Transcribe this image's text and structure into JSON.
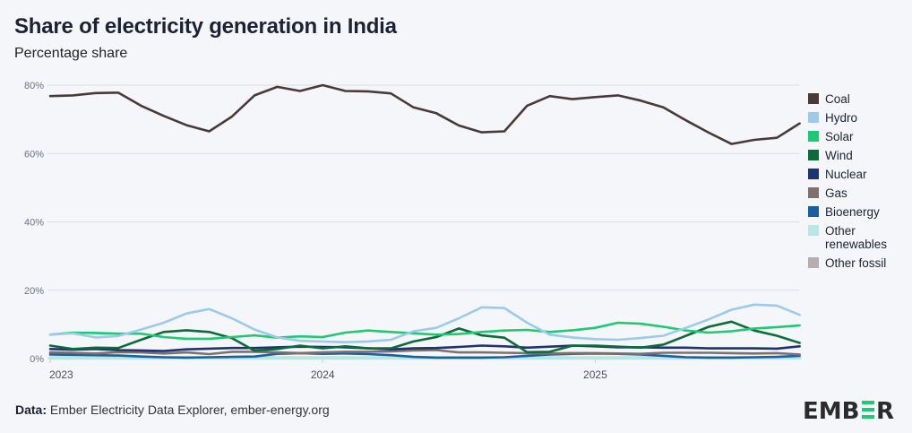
{
  "header": {
    "title": "Share of electricity generation in India",
    "subtitle": "Percentage share"
  },
  "footer": {
    "source_label": "Data:",
    "source_text": "Ember Electricity Data Explorer, ember-energy.org",
    "logo_text": "EMBER"
  },
  "chart_data": {
    "type": "line",
    "title": "Share of electricity generation in India",
    "subtitle": "Percentage share",
    "xlabel": "",
    "ylabel": "",
    "ylim": [
      0,
      80
    ],
    "yticks": [
      0,
      20,
      40,
      60,
      80
    ],
    "ytick_labels": [
      "0%",
      "20%",
      "40%",
      "60%",
      "80%"
    ],
    "x_start": "2023-01",
    "x_interval": "monthly",
    "xticks": [
      {
        "index": 0,
        "label": "2023"
      },
      {
        "index": 12,
        "label": "2024"
      },
      {
        "index": 24,
        "label": "2025"
      }
    ],
    "grid": true,
    "legend_position": "right",
    "series": [
      {
        "name": "Coal",
        "color": "#4a3a37",
        "values": [
          76.8,
          77,
          77.7,
          77.8,
          74,
          71,
          68.3,
          66.5,
          70.8,
          77,
          79.5,
          78.3,
          80,
          78.3,
          78.2,
          77.6,
          73.5,
          71.8,
          68.2,
          66.2,
          66.5,
          74,
          76.8,
          75.9,
          76.5,
          77,
          75.5,
          73.5,
          69.7,
          66.1,
          62.8,
          64,
          64.6,
          68.8
        ]
      },
      {
        "name": "Hydro",
        "color": "#9bcbea",
        "values": [
          7,
          7.4,
          6.2,
          6.6,
          8.5,
          10.5,
          13.2,
          14.5,
          11.8,
          8.5,
          6.2,
          5.2,
          5,
          4.8,
          5,
          5.5,
          8,
          9,
          11.8,
          15,
          14.8,
          10.5,
          7,
          6.2,
          5.7,
          5.5,
          6,
          6.7,
          9,
          11.5,
          14.3,
          15.8,
          15.5,
          12.8
        ]
      },
      {
        "name": "Solar",
        "color": "#1fc972",
        "values": [
          7,
          7.6,
          7.5,
          7.3,
          7.3,
          6.3,
          5.8,
          5.8,
          6.3,
          6.8,
          6.1,
          6.5,
          6.3,
          7.6,
          8.2,
          7.8,
          7.4,
          7,
          7.2,
          7.8,
          8.2,
          8.4,
          7.8,
          8.3,
          9,
          10.5,
          10.2,
          9.3,
          8.2,
          7.6,
          8,
          8.8,
          9.2,
          9.7
        ]
      },
      {
        "name": "Wind",
        "color": "#0b6b3a",
        "values": [
          3.8,
          2.8,
          3.2,
          3.1,
          5.5,
          7.8,
          8.3,
          7.8,
          6,
          2.3,
          2.8,
          3.8,
          3,
          3.6,
          3,
          3,
          5,
          6.3,
          8.8,
          6.8,
          6.1,
          1.9,
          2,
          3.8,
          3.8,
          3.5,
          3.2,
          4.1,
          6.7,
          9.3,
          10.8,
          8.2,
          6.7,
          4.6
        ]
      },
      {
        "name": "Nuclear",
        "color": "#1e3371",
        "values": [
          2.8,
          2.6,
          2.8,
          2.5,
          2.4,
          2.2,
          2.7,
          2.9,
          3.1,
          3.1,
          3.3,
          3.5,
          3.4,
          3.3,
          3,
          2.7,
          3,
          3.1,
          3.4,
          3.8,
          3.6,
          3.2,
          3.5,
          3.8,
          3.6,
          3.3,
          3.3,
          3.2,
          3.2,
          3,
          3,
          3,
          2.9,
          3.6
        ]
      },
      {
        "name": "Gas",
        "color": "#7e716d",
        "values": [
          1.8,
          1.7,
          1.5,
          1.9,
          1.8,
          1.5,
          1.8,
          1.3,
          2,
          2,
          1.8,
          1.6,
          1.8,
          2,
          2,
          2.1,
          2.4,
          2.5,
          1.8,
          1.8,
          1.7,
          1.6,
          1.5,
          1.6,
          1.6,
          1.5,
          1.4,
          1.7,
          1.7,
          1.7,
          1.6,
          1.5,
          1.6,
          1.2
        ]
      },
      {
        "name": "Bioenergy",
        "color": "#1b5fa0",
        "values": [
          1.2,
          1.1,
          1,
          0.9,
          0.6,
          0.4,
          0.3,
          0.4,
          0.5,
          0.6,
          1.4,
          1.6,
          1.4,
          1.5,
          1.3,
          1,
          0.5,
          0.3,
          0.3,
          0.3,
          0.4,
          0.8,
          1.2,
          1.4,
          1.5,
          1.4,
          1.2,
          0.8,
          0.4,
          0.3,
          0.3,
          0.4,
          0.5,
          0.8
        ]
      },
      {
        "name": "Other renewables",
        "color": "#b8e6e3",
        "values": [
          0.2,
          0.2,
          0.2,
          0.2,
          0.2,
          0.2,
          0.2,
          0.2,
          0.2,
          0.2,
          0.2,
          0.2,
          0.2,
          0.2,
          0.2,
          0.2,
          0.2,
          0.2,
          0.2,
          0.2,
          0.2,
          0.2,
          0.2,
          0.2,
          0.2,
          0.2,
          0.2,
          0.2,
          0.2,
          0.2,
          0.2,
          0.2,
          0.2,
          0.2
        ]
      },
      {
        "name": "Other fossil",
        "color": "#b4afac",
        "values": [
          0.1,
          0.1,
          0.1,
          0.1,
          0.1,
          0.1,
          0.1,
          0.1,
          0.1,
          0.1,
          0.1,
          0.1,
          0.1,
          0.1,
          0.1,
          0.1,
          0.1,
          0.1,
          0.1,
          0.1,
          0.1,
          0.1,
          0.1,
          0.1,
          0.1,
          0.1,
          0.1,
          0.1,
          0.1,
          0.1,
          0.1,
          0.1,
          0.1,
          0.1
        ]
      }
    ],
    "legend": [
      {
        "label": "Coal"
      },
      {
        "label": "Hydro"
      },
      {
        "label": "Solar"
      },
      {
        "label": "Wind"
      },
      {
        "label": "Nuclear"
      },
      {
        "label": "Gas"
      },
      {
        "label": "Bioenergy"
      },
      {
        "label": "Other renewables"
      },
      {
        "label": "Other fossil"
      }
    ]
  }
}
